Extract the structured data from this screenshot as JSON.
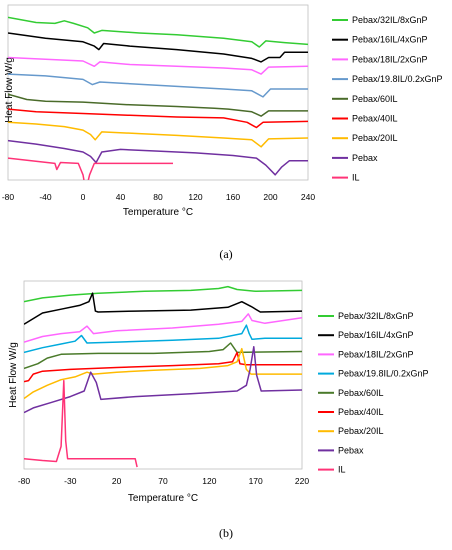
{
  "chart_data": [
    {
      "panel": "(a)",
      "type": "line",
      "xlabel": "Temperature °C",
      "ylabel": "Heat Flow W/g",
      "xlim": [
        -80,
        240
      ],
      "ylim": [
        0,
        10
      ],
      "xticks": [
        -80,
        -40,
        0,
        40,
        80,
        120,
        160,
        200,
        240
      ],
      "grid": false,
      "legend_position": "right",
      "series": [
        {
          "name": "Pebax/32IL/8xGnP",
          "color": "#33cc33",
          "points": [
            [
              -80,
              9.3
            ],
            [
              -50,
              9.0
            ],
            [
              -30,
              8.95
            ],
            [
              -20,
              9.1
            ],
            [
              -10,
              8.95
            ],
            [
              5,
              8.7
            ],
            [
              12,
              8.4
            ],
            [
              20,
              8.55
            ],
            [
              60,
              8.4
            ],
            [
              100,
              8.3
            ],
            [
              150,
              8.1
            ],
            [
              180,
              7.9
            ],
            [
              188,
              7.6
            ],
            [
              195,
              7.95
            ],
            [
              215,
              7.85
            ],
            [
              240,
              7.75
            ]
          ]
        },
        {
          "name": "Pebax/16IL/4xGnP",
          "color": "#000000",
          "points": [
            [
              -80,
              8.4
            ],
            [
              -40,
              8.1
            ],
            [
              0,
              7.9
            ],
            [
              12,
              7.65
            ],
            [
              17,
              7.45
            ],
            [
              22,
              7.8
            ],
            [
              50,
              7.65
            ],
            [
              100,
              7.45
            ],
            [
              150,
              7.2
            ],
            [
              180,
              6.95
            ],
            [
              190,
              6.75
            ],
            [
              198,
              7.0
            ],
            [
              210,
              7.0
            ],
            [
              215,
              7.3
            ],
            [
              240,
              7.3
            ]
          ]
        },
        {
          "name": "Pebax/18IL/2xGnP",
          "color": "#ff66ff",
          "points": [
            [
              -80,
              7.0
            ],
            [
              -40,
              6.9
            ],
            [
              0,
              6.8
            ],
            [
              12,
              6.5
            ],
            [
              18,
              6.75
            ],
            [
              50,
              6.6
            ],
            [
              100,
              6.5
            ],
            [
              150,
              6.4
            ],
            [
              180,
              6.3
            ],
            [
              190,
              6.05
            ],
            [
              198,
              6.45
            ],
            [
              240,
              6.5
            ]
          ]
        },
        {
          "name": "Pebax/19.8IL/0.2xGnP",
          "color": "#6699cc",
          "points": [
            [
              -80,
              6.05
            ],
            [
              -40,
              5.95
            ],
            [
              0,
              5.75
            ],
            [
              10,
              5.45
            ],
            [
              18,
              5.6
            ],
            [
              50,
              5.5
            ],
            [
              100,
              5.35
            ],
            [
              150,
              5.2
            ],
            [
              180,
              5.1
            ],
            [
              192,
              4.75
            ],
            [
              200,
              5.2
            ],
            [
              240,
              5.2
            ]
          ]
        },
        {
          "name": "Pebax/60IL",
          "color": "#4a6b2a",
          "points": [
            [
              -80,
              4.9
            ],
            [
              -60,
              4.6
            ],
            [
              -40,
              4.5
            ],
            [
              0,
              4.45
            ],
            [
              50,
              4.3
            ],
            [
              100,
              4.2
            ],
            [
              140,
              4.1
            ],
            [
              155,
              4.05
            ],
            [
              180,
              3.9
            ],
            [
              190,
              3.65
            ],
            [
              198,
              3.95
            ],
            [
              240,
              3.95
            ]
          ]
        },
        {
          "name": "Pebax/40IL",
          "color": "#ff0000",
          "points": [
            [
              -80,
              4.05
            ],
            [
              -50,
              3.9
            ],
            [
              0,
              3.8
            ],
            [
              50,
              3.7
            ],
            [
              100,
              3.6
            ],
            [
              150,
              3.55
            ],
            [
              175,
              3.3
            ],
            [
              185,
              3.0
            ],
            [
              192,
              3.3
            ],
            [
              240,
              3.35
            ]
          ]
        },
        {
          "name": "Pebax/20IL",
          "color": "#ffbb00",
          "points": [
            [
              -80,
              3.3
            ],
            [
              -50,
              3.2
            ],
            [
              -20,
              3.05
            ],
            [
              0,
              2.85
            ],
            [
              8,
              2.6
            ],
            [
              13,
              2.3
            ],
            [
              20,
              2.75
            ],
            [
              60,
              2.65
            ],
            [
              100,
              2.55
            ],
            [
              150,
              2.4
            ],
            [
              180,
              2.3
            ],
            [
              190,
              1.9
            ],
            [
              198,
              2.35
            ],
            [
              240,
              2.4
            ]
          ]
        },
        {
          "name": "Pebax",
          "color": "#7030a0",
          "points": [
            [
              -80,
              2.25
            ],
            [
              -50,
              2.05
            ],
            [
              -20,
              1.8
            ],
            [
              0,
              1.6
            ],
            [
              8,
              1.35
            ],
            [
              14,
              1.0
            ],
            [
              20,
              1.6
            ],
            [
              40,
              1.75
            ],
            [
              80,
              1.65
            ],
            [
              120,
              1.55
            ],
            [
              160,
              1.4
            ],
            [
              185,
              1.25
            ],
            [
              195,
              0.85
            ],
            [
              205,
              0.3
            ],
            [
              212,
              0.75
            ],
            [
              220,
              1.1
            ],
            [
              240,
              1.1
            ]
          ]
        },
        {
          "name": "IL",
          "color": "#ff3377",
          "points": [
            [
              -80,
              1.25
            ],
            [
              -55,
              1.1
            ],
            [
              -30,
              0.95
            ],
            [
              -28,
              0.6
            ],
            [
              -24,
              1.0
            ],
            [
              -5,
              0.95
            ],
            [
              0,
              0.3
            ],
            [
              3,
              -0.6
            ],
            [
              7,
              0.3
            ],
            [
              12,
              0.95
            ],
            [
              50,
              0.95
            ],
            [
              96,
              0.95
            ]
          ]
        }
      ]
    },
    {
      "panel": "(b)",
      "type": "line",
      "xlabel": "Temperature °C",
      "ylabel": "Heat Flow W/g",
      "xlim": [
        -80,
        220
      ],
      "ylim": [
        0,
        10
      ],
      "xticks": [
        -80,
        -30,
        20,
        70,
        120,
        170,
        220
      ],
      "grid": false,
      "legend_position": "right",
      "series": [
        {
          "name": "Pebax/32IL/8xGnP",
          "color": "#33cc33",
          "points": [
            [
              -80,
              8.9
            ],
            [
              -60,
              9.1
            ],
            [
              -30,
              9.25
            ],
            [
              0,
              9.35
            ],
            [
              50,
              9.45
            ],
            [
              100,
              9.5
            ],
            [
              130,
              9.6
            ],
            [
              140,
              9.7
            ],
            [
              150,
              9.55
            ],
            [
              170,
              9.45
            ],
            [
              220,
              9.5
            ]
          ]
        },
        {
          "name": "Pebax/16IL/4xGnP",
          "color": "#000000",
          "points": [
            [
              -80,
              7.7
            ],
            [
              -60,
              8.3
            ],
            [
              -40,
              8.5
            ],
            [
              -20,
              8.7
            ],
            [
              -10,
              8.9
            ],
            [
              -6,
              9.35
            ],
            [
              -3,
              8.4
            ],
            [
              0,
              8.35
            ],
            [
              40,
              8.4
            ],
            [
              100,
              8.45
            ],
            [
              140,
              8.6
            ],
            [
              155,
              8.9
            ],
            [
              165,
              8.65
            ],
            [
              175,
              8.35
            ],
            [
              220,
              8.4
            ]
          ]
        },
        {
          "name": "Pebax/18IL/2xGnP",
          "color": "#ff66ff",
          "points": [
            [
              -80,
              6.75
            ],
            [
              -60,
              7.05
            ],
            [
              -40,
              7.2
            ],
            [
              -20,
              7.3
            ],
            [
              -12,
              7.6
            ],
            [
              -5,
              7.2
            ],
            [
              20,
              7.35
            ],
            [
              80,
              7.5
            ],
            [
              130,
              7.7
            ],
            [
              155,
              7.85
            ],
            [
              162,
              8.25
            ],
            [
              166,
              7.9
            ],
            [
              180,
              7.75
            ],
            [
              220,
              8.05
            ]
          ]
        },
        {
          "name": "Pebax/19.8IL/0.2xGnP",
          "color": "#00aadd",
          "points": [
            [
              -80,
              6.2
            ],
            [
              -60,
              6.45
            ],
            [
              -40,
              6.65
            ],
            [
              -25,
              6.8
            ],
            [
              -18,
              7.1
            ],
            [
              -12,
              6.7
            ],
            [
              20,
              6.75
            ],
            [
              80,
              6.85
            ],
            [
              130,
              6.95
            ],
            [
              155,
              7.2
            ],
            [
              160,
              7.65
            ],
            [
              163,
              7.2
            ],
            [
              166,
              6.9
            ],
            [
              180,
              6.95
            ],
            [
              220,
              6.95
            ]
          ]
        },
        {
          "name": "Pebax/60IL",
          "color": "#4a7a2a",
          "points": [
            [
              -80,
              5.35
            ],
            [
              -65,
              5.6
            ],
            [
              -55,
              5.9
            ],
            [
              -40,
              6.1
            ],
            [
              0,
              6.15
            ],
            [
              60,
              6.15
            ],
            [
              120,
              6.25
            ],
            [
              135,
              6.35
            ],
            [
              143,
              6.7
            ],
            [
              150,
              6.2
            ],
            [
              220,
              6.25
            ]
          ]
        },
        {
          "name": "Pebax/40IL",
          "color": "#ff0000",
          "points": [
            [
              -80,
              4.65
            ],
            [
              -75,
              4.7
            ],
            [
              -70,
              5.05
            ],
            [
              -60,
              5.2
            ],
            [
              -30,
              5.3
            ],
            [
              20,
              5.4
            ],
            [
              80,
              5.5
            ],
            [
              130,
              5.6
            ],
            [
              145,
              5.7
            ],
            [
              150,
              6.2
            ],
            [
              153,
              5.6
            ],
            [
              160,
              5.55
            ],
            [
              220,
              5.55
            ]
          ]
        },
        {
          "name": "Pebax/20IL",
          "color": "#ffbb00",
          "points": [
            [
              -80,
              3.75
            ],
            [
              -70,
              4.1
            ],
            [
              -55,
              4.45
            ],
            [
              -40,
              4.75
            ],
            [
              -25,
              4.9
            ],
            [
              -12,
              5.15
            ],
            [
              -5,
              5.05
            ],
            [
              20,
              5.15
            ],
            [
              60,
              5.25
            ],
            [
              110,
              5.35
            ],
            [
              140,
              5.5
            ],
            [
              150,
              5.7
            ],
            [
              155,
              6.4
            ],
            [
              160,
              5.3
            ],
            [
              165,
              5.05
            ],
            [
              220,
              5.05
            ]
          ]
        },
        {
          "name": "Pebax",
          "color": "#7030a0",
          "points": [
            [
              -80,
              3.0
            ],
            [
              -70,
              3.25
            ],
            [
              -50,
              3.55
            ],
            [
              -30,
              3.85
            ],
            [
              -15,
              4.15
            ],
            [
              -8,
              5.15
            ],
            [
              -2,
              4.6
            ],
            [
              3,
              3.7
            ],
            [
              40,
              3.85
            ],
            [
              100,
              4.0
            ],
            [
              150,
              4.15
            ],
            [
              160,
              4.45
            ],
            [
              164,
              5.3
            ],
            [
              168,
              6.5
            ],
            [
              171,
              5.0
            ],
            [
              176,
              4.15
            ],
            [
              220,
              4.2
            ]
          ]
        },
        {
          "name": "IL",
          "color": "#ff3377",
          "points": [
            [
              -80,
              0.55
            ],
            [
              -60,
              0.45
            ],
            [
              -45,
              0.4
            ],
            [
              -40,
              1.2
            ],
            [
              -37,
              4.7
            ],
            [
              -35,
              1.5
            ],
            [
              -33,
              0.55
            ],
            [
              -10,
              0.55
            ],
            [
              20,
              0.55
            ],
            [
              40,
              0.55
            ],
            [
              42,
              0.1
            ]
          ]
        }
      ]
    }
  ]
}
